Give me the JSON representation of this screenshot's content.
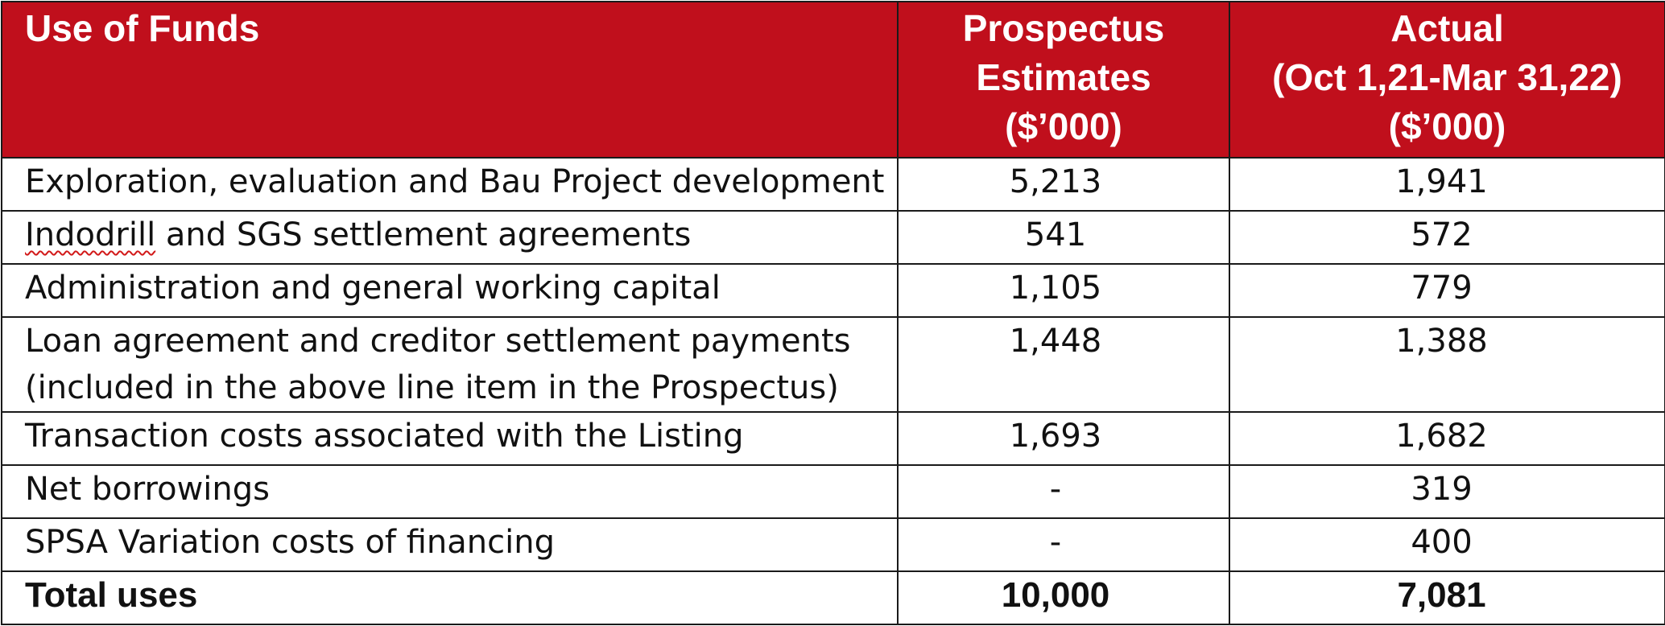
{
  "colors": {
    "header_background": "#c00f1c",
    "header_text": "#ffffff",
    "body_text": "#111111",
    "border": "#1a1a1a",
    "spellcheck_underline": "#d21919"
  },
  "table": {
    "headers": {
      "label": "Use of Funds",
      "prospectus": [
        "Prospectus",
        "Estimates",
        "($’000)"
      ],
      "actual": [
        "Actual",
        "(Oct 1,21-Mar 31,22)",
        "($’000)"
      ]
    },
    "rows": [
      {
        "label": "Exploration, evaluation and Bau Project development",
        "prospectus": "5,213",
        "actual": "1,941"
      },
      {
        "label_marked": "Indodrill",
        "label_rest": " and SGS settlement agreements",
        "prospectus": "541",
        "actual": "572"
      },
      {
        "label": "Administration and general working capital",
        "prospectus": "1,105",
        "actual": "779"
      },
      {
        "label_lines": [
          "Loan agreement and creditor settlement payments",
          "(included in the above line item in the Prospectus)"
        ],
        "prospectus": "1,448",
        "actual": "1,388"
      },
      {
        "label": "Transaction costs associated with the Listing",
        "prospectus": "1,693",
        "actual": "1,682"
      },
      {
        "label": "Net borrowings",
        "prospectus": "-",
        "actual": "319"
      },
      {
        "label": "SPSA Variation costs of financing",
        "prospectus": "-",
        "actual": "400"
      }
    ],
    "total": {
      "label": "Total uses",
      "prospectus": "10,000",
      "actual": "7,081"
    }
  }
}
